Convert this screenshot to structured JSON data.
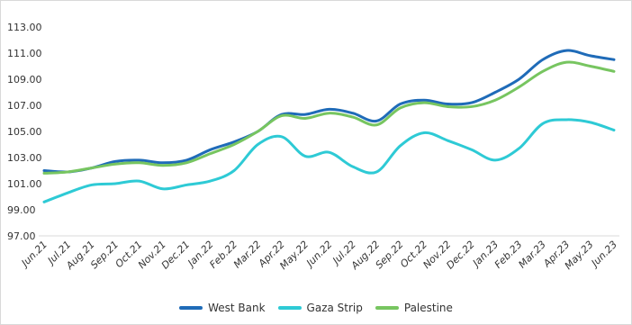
{
  "chart_data": {
    "type": "line",
    "x": [
      "Jun.21",
      "Jul.21",
      "Aug.21",
      "Sep.21",
      "Oct.21",
      "Nov.21",
      "Dec.21",
      "Jan.22",
      "Feb.22",
      "Mar.22",
      "Apr.22",
      "May.22",
      "Jun.22",
      "Jul.22",
      "Aug.22",
      "Sep.22",
      "Oct.22",
      "Nov.22",
      "Dec.22",
      "Jan.23",
      "Feb.23",
      "Mar.23",
      "Apr.23",
      "May.23",
      "Jun.23"
    ],
    "y_ticks": [
      "97.00",
      "99.00",
      "101.00",
      "103.00",
      "105.00",
      "107.00",
      "109.00",
      "111.00",
      "113.00"
    ],
    "ylim": [
      97,
      113
    ],
    "grid": false,
    "legend_position": "bottom",
    "series": [
      {
        "name": "West Bank",
        "color": "#1f6bb8",
        "values": [
          102.0,
          101.9,
          102.2,
          102.7,
          102.8,
          102.6,
          102.8,
          103.6,
          104.2,
          105.0,
          106.3,
          106.3,
          106.7,
          106.4,
          105.8,
          107.1,
          107.4,
          107.1,
          107.2,
          108.0,
          109.0,
          110.5,
          111.2,
          110.8,
          110.5
        ]
      },
      {
        "name": "Gaza Strip",
        "color": "#2ecad5",
        "values": [
          99.6,
          100.3,
          100.9,
          101.0,
          101.2,
          100.6,
          100.9,
          101.2,
          102.0,
          104.0,
          104.6,
          103.1,
          103.4,
          102.3,
          101.9,
          103.9,
          104.9,
          104.3,
          103.6,
          102.8,
          103.7,
          105.6,
          105.9,
          105.7,
          105.1
        ]
      },
      {
        "name": "Palestine",
        "color": "#77c560",
        "values": [
          101.8,
          101.9,
          102.2,
          102.5,
          102.6,
          102.4,
          102.6,
          103.3,
          104.0,
          105.0,
          106.2,
          106.0,
          106.4,
          106.1,
          105.5,
          106.8,
          107.2,
          106.9,
          106.9,
          107.4,
          108.4,
          109.6,
          110.3,
          110.0,
          109.6
        ]
      }
    ]
  }
}
